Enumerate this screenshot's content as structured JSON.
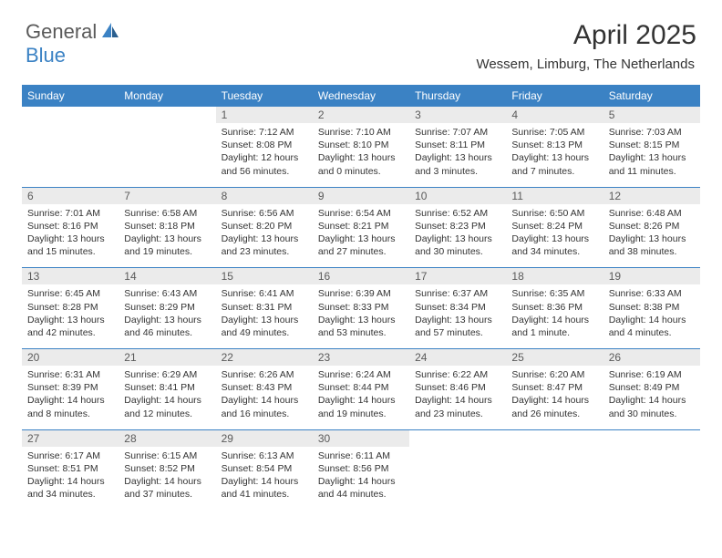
{
  "logo": {
    "general": "General",
    "blue": "Blue"
  },
  "title": "April 2025",
  "location": "Wessem, Limburg, The Netherlands",
  "colors": {
    "accent": "#3b82c4",
    "day_bg": "#ebebeb",
    "text": "#333333",
    "logo_gray": "#5a5a5a"
  },
  "daysOfWeek": [
    "Sunday",
    "Monday",
    "Tuesday",
    "Wednesday",
    "Thursday",
    "Friday",
    "Saturday"
  ],
  "weeks": [
    [
      null,
      null,
      {
        "n": "1",
        "sr": "Sunrise: 7:12 AM",
        "ss": "Sunset: 8:08 PM",
        "dl": "Daylight: 12 hours and 56 minutes."
      },
      {
        "n": "2",
        "sr": "Sunrise: 7:10 AM",
        "ss": "Sunset: 8:10 PM",
        "dl": "Daylight: 13 hours and 0 minutes."
      },
      {
        "n": "3",
        "sr": "Sunrise: 7:07 AM",
        "ss": "Sunset: 8:11 PM",
        "dl": "Daylight: 13 hours and 3 minutes."
      },
      {
        "n": "4",
        "sr": "Sunrise: 7:05 AM",
        "ss": "Sunset: 8:13 PM",
        "dl": "Daylight: 13 hours and 7 minutes."
      },
      {
        "n": "5",
        "sr": "Sunrise: 7:03 AM",
        "ss": "Sunset: 8:15 PM",
        "dl": "Daylight: 13 hours and 11 minutes."
      }
    ],
    [
      {
        "n": "6",
        "sr": "Sunrise: 7:01 AM",
        "ss": "Sunset: 8:16 PM",
        "dl": "Daylight: 13 hours and 15 minutes."
      },
      {
        "n": "7",
        "sr": "Sunrise: 6:58 AM",
        "ss": "Sunset: 8:18 PM",
        "dl": "Daylight: 13 hours and 19 minutes."
      },
      {
        "n": "8",
        "sr": "Sunrise: 6:56 AM",
        "ss": "Sunset: 8:20 PM",
        "dl": "Daylight: 13 hours and 23 minutes."
      },
      {
        "n": "9",
        "sr": "Sunrise: 6:54 AM",
        "ss": "Sunset: 8:21 PM",
        "dl": "Daylight: 13 hours and 27 minutes."
      },
      {
        "n": "10",
        "sr": "Sunrise: 6:52 AM",
        "ss": "Sunset: 8:23 PM",
        "dl": "Daylight: 13 hours and 30 minutes."
      },
      {
        "n": "11",
        "sr": "Sunrise: 6:50 AM",
        "ss": "Sunset: 8:24 PM",
        "dl": "Daylight: 13 hours and 34 minutes."
      },
      {
        "n": "12",
        "sr": "Sunrise: 6:48 AM",
        "ss": "Sunset: 8:26 PM",
        "dl": "Daylight: 13 hours and 38 minutes."
      }
    ],
    [
      {
        "n": "13",
        "sr": "Sunrise: 6:45 AM",
        "ss": "Sunset: 8:28 PM",
        "dl": "Daylight: 13 hours and 42 minutes."
      },
      {
        "n": "14",
        "sr": "Sunrise: 6:43 AM",
        "ss": "Sunset: 8:29 PM",
        "dl": "Daylight: 13 hours and 46 minutes."
      },
      {
        "n": "15",
        "sr": "Sunrise: 6:41 AM",
        "ss": "Sunset: 8:31 PM",
        "dl": "Daylight: 13 hours and 49 minutes."
      },
      {
        "n": "16",
        "sr": "Sunrise: 6:39 AM",
        "ss": "Sunset: 8:33 PM",
        "dl": "Daylight: 13 hours and 53 minutes."
      },
      {
        "n": "17",
        "sr": "Sunrise: 6:37 AM",
        "ss": "Sunset: 8:34 PM",
        "dl": "Daylight: 13 hours and 57 minutes."
      },
      {
        "n": "18",
        "sr": "Sunrise: 6:35 AM",
        "ss": "Sunset: 8:36 PM",
        "dl": "Daylight: 14 hours and 1 minute."
      },
      {
        "n": "19",
        "sr": "Sunrise: 6:33 AM",
        "ss": "Sunset: 8:38 PM",
        "dl": "Daylight: 14 hours and 4 minutes."
      }
    ],
    [
      {
        "n": "20",
        "sr": "Sunrise: 6:31 AM",
        "ss": "Sunset: 8:39 PM",
        "dl": "Daylight: 14 hours and 8 minutes."
      },
      {
        "n": "21",
        "sr": "Sunrise: 6:29 AM",
        "ss": "Sunset: 8:41 PM",
        "dl": "Daylight: 14 hours and 12 minutes."
      },
      {
        "n": "22",
        "sr": "Sunrise: 6:26 AM",
        "ss": "Sunset: 8:43 PM",
        "dl": "Daylight: 14 hours and 16 minutes."
      },
      {
        "n": "23",
        "sr": "Sunrise: 6:24 AM",
        "ss": "Sunset: 8:44 PM",
        "dl": "Daylight: 14 hours and 19 minutes."
      },
      {
        "n": "24",
        "sr": "Sunrise: 6:22 AM",
        "ss": "Sunset: 8:46 PM",
        "dl": "Daylight: 14 hours and 23 minutes."
      },
      {
        "n": "25",
        "sr": "Sunrise: 6:20 AM",
        "ss": "Sunset: 8:47 PM",
        "dl": "Daylight: 14 hours and 26 minutes."
      },
      {
        "n": "26",
        "sr": "Sunrise: 6:19 AM",
        "ss": "Sunset: 8:49 PM",
        "dl": "Daylight: 14 hours and 30 minutes."
      }
    ],
    [
      {
        "n": "27",
        "sr": "Sunrise: 6:17 AM",
        "ss": "Sunset: 8:51 PM",
        "dl": "Daylight: 14 hours and 34 minutes."
      },
      {
        "n": "28",
        "sr": "Sunrise: 6:15 AM",
        "ss": "Sunset: 8:52 PM",
        "dl": "Daylight: 14 hours and 37 minutes."
      },
      {
        "n": "29",
        "sr": "Sunrise: 6:13 AM",
        "ss": "Sunset: 8:54 PM",
        "dl": "Daylight: 14 hours and 41 minutes."
      },
      {
        "n": "30",
        "sr": "Sunrise: 6:11 AM",
        "ss": "Sunset: 8:56 PM",
        "dl": "Daylight: 14 hours and 44 minutes."
      },
      null,
      null,
      null
    ]
  ]
}
